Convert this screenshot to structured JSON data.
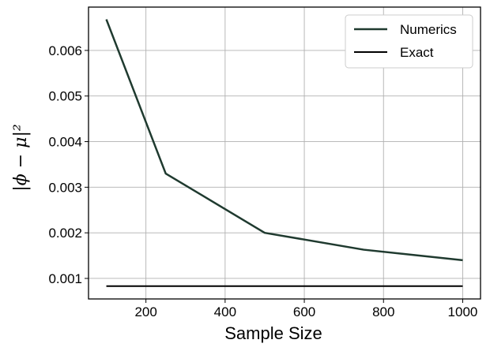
{
  "chart_data": {
    "type": "line",
    "title": "",
    "xlabel": "Sample Size",
    "ylabel": "|ϕ − μ|²",
    "xlim": [
      55,
      1045
    ],
    "ylim": [
      0.00055,
      0.00695
    ],
    "xticks": [
      200,
      400,
      600,
      800,
      1000
    ],
    "yticks": [
      0.001,
      0.002,
      0.003,
      0.004,
      0.005,
      0.006
    ],
    "xtick_labels": [
      "200",
      "400",
      "600",
      "800",
      "1000"
    ],
    "ytick_labels": [
      "0.001",
      "0.002",
      "0.003",
      "0.004",
      "0.005",
      "0.006"
    ],
    "grid": true,
    "legend_position": "top-right",
    "series": [
      {
        "name": "Numerics",
        "color": "#1f3a2f",
        "x": [
          100,
          250,
          500,
          750,
          1000
        ],
        "values": [
          0.00668,
          0.0033,
          0.002,
          0.00163,
          0.0014
        ]
      },
      {
        "name": "Exact",
        "color": "#000000",
        "x": [
          100,
          1000
        ],
        "values": [
          0.00083,
          0.00083
        ]
      }
    ]
  }
}
